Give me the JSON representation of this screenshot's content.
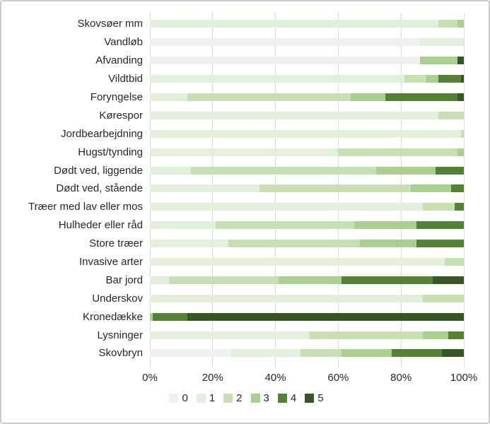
{
  "chart_data": {
    "type": "bar",
    "variant": "horizontal-stacked-100pct",
    "title": "",
    "xlabel": "",
    "ylabel": "",
    "xlim": [
      0,
      100
    ],
    "grid": "vertical",
    "legend_position": "bottom",
    "x_ticks": [
      "0%",
      "20%",
      "40%",
      "60%",
      "80%",
      "100%"
    ],
    "categories": [
      "Skovsøer mm",
      "Vandløb",
      "Afvanding",
      "Vildtbid",
      "Foryngelse",
      "Kørespor",
      "Jordbearbejdning",
      "Hugst/tynding",
      "Dødt ved, liggende",
      "Dødt ved, stående",
      "Træer med lav eller mos",
      "Hulheder eller råd",
      "Store træer",
      "Invasive arter",
      "Bar jord",
      "Underskov",
      "Kronedække",
      "Lysninger",
      "Skovbryn"
    ],
    "series": [
      {
        "name": "0",
        "color": "#efefef",
        "values": [
          0,
          86,
          86,
          0,
          0,
          0,
          0,
          0,
          0,
          0,
          0,
          0,
          0,
          0,
          0,
          0,
          0,
          0,
          26
        ]
      },
      {
        "name": "1",
        "color": "#e2efda",
        "values": [
          92,
          14,
          0,
          81,
          12,
          92,
          99,
          60,
          13,
          35,
          87,
          21,
          25,
          94,
          6,
          87,
          0,
          51,
          22
        ]
      },
      {
        "name": "2",
        "color": "#c6e0b4",
        "values": [
          6,
          0,
          0,
          7,
          52,
          8,
          1,
          38,
          59,
          48,
          10,
          44,
          42,
          6,
          35,
          13,
          0,
          36,
          13
        ]
      },
      {
        "name": "3",
        "color": "#a9d08e",
        "values": [
          2,
          0,
          12,
          4,
          11,
          0,
          0,
          2,
          19,
          13,
          0,
          20,
          18,
          0,
          20,
          0,
          1,
          8,
          16
        ]
      },
      {
        "name": "4",
        "color": "#548235",
        "values": [
          0,
          0,
          0,
          7,
          23,
          0,
          0,
          0,
          9,
          4,
          3,
          15,
          15,
          0,
          29,
          0,
          11,
          5,
          16
        ]
      },
      {
        "name": "5",
        "color": "#375623",
        "values": [
          0,
          0,
          2,
          1,
          2,
          0,
          0,
          0,
          0,
          0,
          0,
          0,
          0,
          0,
          10,
          0,
          88,
          0,
          7
        ]
      }
    ],
    "colors": {
      "grid": "#d9d9d9",
      "text": "#262626"
    }
  }
}
